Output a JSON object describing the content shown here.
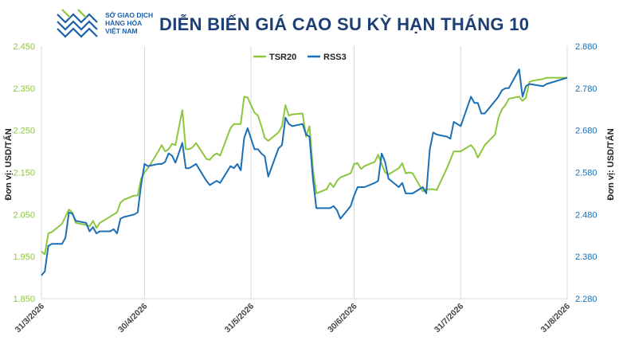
{
  "header": {
    "logo_text": "SỞ GIAO DỊCH\nHÀNG HÓA\nVIỆT NAM",
    "title": "DIỄN BIẾN GIÁ CAO SU KỲ HẠN THÁNG 10"
  },
  "chart_data": {
    "type": "line",
    "title": "DIỄN BIẾN GIÁ CAO SU KỲ HẠN THÁNG 10",
    "y_left_label": "Đơn vị: USD/TẤN",
    "y_right_label": "Đơn vị: USD/TẤN",
    "y_left_range": [
      1.85,
      2.45
    ],
    "y_right_range": [
      2.28,
      2.88
    ],
    "y_left_ticks": [
      "1.850",
      "1.950",
      "2.050",
      "2.150",
      "2.250",
      "2.350",
      "2.450"
    ],
    "y_right_ticks": [
      "2.280",
      "2.380",
      "2.480",
      "2.580",
      "2.680",
      "2.780",
      "2.880"
    ],
    "x_range": [
      "2026-03-31",
      "2026-08-31"
    ],
    "x_ticks": [
      {
        "date": "2026-03-31",
        "label": "31/3/2026"
      },
      {
        "date": "2026-04-30",
        "label": "30/4/2026"
      },
      {
        "date": "2026-05-31",
        "label": "31/5/2026"
      },
      {
        "date": "2026-06-30",
        "label": "30/6/2026"
      },
      {
        "date": "2026-07-31",
        "label": "31/7/2026"
      },
      {
        "date": "2026-08-31",
        "label": "31/8/2026"
      }
    ],
    "grid": "vertical",
    "legend_position": "top-center",
    "series": [
      {
        "name": "TSR20",
        "axis": "left",
        "color": "#8dc63f",
        "points": [
          [
            "2026-03-31",
            1.962
          ],
          [
            "2026-04-01",
            1.955
          ],
          [
            "2026-04-02",
            2.005
          ],
          [
            "2026-04-03",
            2.008
          ],
          [
            "2026-04-06",
            2.028
          ],
          [
            "2026-04-07",
            2.045
          ],
          [
            "2026-04-08",
            2.062
          ],
          [
            "2026-04-09",
            2.055
          ],
          [
            "2026-04-10",
            2.03
          ],
          [
            "2026-04-13",
            2.025
          ],
          [
            "2026-04-14",
            2.022
          ],
          [
            "2026-04-15",
            2.035
          ],
          [
            "2026-04-16",
            2.018
          ],
          [
            "2026-04-17",
            2.03
          ],
          [
            "2026-04-20",
            2.045
          ],
          [
            "2026-04-21",
            2.05
          ],
          [
            "2026-04-22",
            2.055
          ],
          [
            "2026-04-23",
            2.078
          ],
          [
            "2026-04-24",
            2.085
          ],
          [
            "2026-04-27",
            2.095
          ],
          [
            "2026-04-28",
            2.095
          ],
          [
            "2026-04-29",
            2.135
          ],
          [
            "2026-04-30",
            2.15
          ],
          [
            "2026-05-01",
            2.16
          ],
          [
            "2026-05-04",
            2.2
          ],
          [
            "2026-05-05",
            2.215
          ],
          [
            "2026-05-06",
            2.2
          ],
          [
            "2026-05-07",
            2.205
          ],
          [
            "2026-05-08",
            2.218
          ],
          [
            "2026-05-09",
            2.215
          ],
          [
            "2026-05-11",
            2.298
          ],
          [
            "2026-05-12",
            2.205
          ],
          [
            "2026-05-13",
            2.205
          ],
          [
            "2026-05-14",
            2.21
          ],
          [
            "2026-05-15",
            2.22
          ],
          [
            "2026-05-18",
            2.182
          ],
          [
            "2026-05-19",
            2.18
          ],
          [
            "2026-05-20",
            2.19
          ],
          [
            "2026-05-21",
            2.195
          ],
          [
            "2026-05-22",
            2.19
          ],
          [
            "2026-05-25",
            2.255
          ],
          [
            "2026-05-26",
            2.265
          ],
          [
            "2026-05-27",
            2.265
          ],
          [
            "2026-05-28",
            2.265
          ],
          [
            "2026-05-29",
            2.33
          ],
          [
            "2026-05-30",
            2.328
          ],
          [
            "2026-06-01",
            2.292
          ],
          [
            "2026-06-02",
            2.285
          ],
          [
            "2026-06-03",
            2.26
          ],
          [
            "2026-06-04",
            2.232
          ],
          [
            "2026-06-05",
            2.225
          ],
          [
            "2026-06-08",
            2.245
          ],
          [
            "2026-06-09",
            2.26
          ],
          [
            "2026-06-10",
            2.31
          ],
          [
            "2026-06-11",
            2.285
          ],
          [
            "2026-06-12",
            2.288
          ],
          [
            "2026-06-15",
            2.29
          ],
          [
            "2026-06-16",
            2.235
          ],
          [
            "2026-06-17",
            2.26
          ],
          [
            "2026-06-18",
            2.158
          ],
          [
            "2026-06-19",
            2.1
          ],
          [
            "2026-06-22",
            2.11
          ],
          [
            "2026-06-23",
            2.125
          ],
          [
            "2026-06-24",
            2.115
          ],
          [
            "2026-06-25",
            2.13
          ],
          [
            "2026-06-26",
            2.138
          ],
          [
            "2026-06-29",
            2.148
          ],
          [
            "2026-06-30",
            2.17
          ],
          [
            "2026-07-01",
            2.172
          ],
          [
            "2026-07-02",
            2.158
          ],
          [
            "2026-07-03",
            2.165
          ],
          [
            "2026-07-06",
            2.175
          ],
          [
            "2026-07-07",
            2.192
          ],
          [
            "2026-07-08",
            2.17
          ],
          [
            "2026-07-09",
            2.15
          ],
          [
            "2026-07-10",
            2.145
          ],
          [
            "2026-07-13",
            2.16
          ],
          [
            "2026-07-14",
            2.172
          ],
          [
            "2026-07-15",
            2.148
          ],
          [
            "2026-07-16",
            2.15
          ],
          [
            "2026-07-17",
            2.148
          ],
          [
            "2026-07-20",
            2.105
          ],
          [
            "2026-07-21",
            2.11
          ],
          [
            "2026-07-22",
            2.11
          ],
          [
            "2026-07-23",
            2.11
          ],
          [
            "2026-07-24",
            2.108
          ],
          [
            "2026-07-27",
            2.16
          ],
          [
            "2026-07-28",
            2.18
          ],
          [
            "2026-07-29",
            2.2
          ],
          [
            "2026-07-30",
            2.2
          ],
          [
            "2026-07-31",
            2.2
          ],
          [
            "2026-08-03",
            2.215
          ],
          [
            "2026-08-04",
            2.205
          ],
          [
            "2026-08-05",
            2.185
          ],
          [
            "2026-08-06",
            2.2
          ],
          [
            "2026-08-07",
            2.215
          ],
          [
            "2026-08-10",
            2.24
          ],
          [
            "2026-08-11",
            2.28
          ],
          [
            "2026-08-12",
            2.3
          ],
          [
            "2026-08-13",
            2.31
          ],
          [
            "2026-08-14",
            2.325
          ],
          [
            "2026-08-17",
            2.33
          ],
          [
            "2026-08-18",
            2.32
          ],
          [
            "2026-08-19",
            2.328
          ],
          [
            "2026-08-20",
            2.365
          ],
          [
            "2026-08-21",
            2.368
          ],
          [
            "2026-08-24",
            2.372
          ],
          [
            "2026-08-25",
            2.375
          ],
          [
            "2026-08-31",
            2.375
          ]
        ]
      },
      {
        "name": "RSS3",
        "axis": "right",
        "color": "#1a6fb5",
        "points": [
          [
            "2026-03-31",
            2.335
          ],
          [
            "2026-04-01",
            2.345
          ],
          [
            "2026-04-02",
            2.405
          ],
          [
            "2026-04-03",
            2.41
          ],
          [
            "2026-04-06",
            2.41
          ],
          [
            "2026-04-07",
            2.425
          ],
          [
            "2026-04-08",
            2.485
          ],
          [
            "2026-04-09",
            2.482
          ],
          [
            "2026-04-10",
            2.465
          ],
          [
            "2026-04-13",
            2.46
          ],
          [
            "2026-04-14",
            2.44
          ],
          [
            "2026-04-15",
            2.45
          ],
          [
            "2026-04-16",
            2.435
          ],
          [
            "2026-04-17",
            2.44
          ],
          [
            "2026-04-20",
            2.44
          ],
          [
            "2026-04-21",
            2.445
          ],
          [
            "2026-04-22",
            2.435
          ],
          [
            "2026-04-23",
            2.47
          ],
          [
            "2026-04-24",
            2.474
          ],
          [
            "2026-04-27",
            2.48
          ],
          [
            "2026-04-28",
            2.485
          ],
          [
            "2026-04-29",
            2.55
          ],
          [
            "2026-04-30",
            2.6
          ],
          [
            "2026-05-01",
            2.595
          ],
          [
            "2026-05-04",
            2.6
          ],
          [
            "2026-05-05",
            2.6
          ],
          [
            "2026-05-06",
            2.605
          ],
          [
            "2026-05-07",
            2.625
          ],
          [
            "2026-05-08",
            2.62
          ],
          [
            "2026-05-09",
            2.603
          ],
          [
            "2026-05-11",
            2.65
          ],
          [
            "2026-05-12",
            2.59
          ],
          [
            "2026-05-13",
            2.59
          ],
          [
            "2026-05-14",
            2.595
          ],
          [
            "2026-05-15",
            2.6
          ],
          [
            "2026-05-18",
            2.56
          ],
          [
            "2026-05-19",
            2.55
          ],
          [
            "2026-05-20",
            2.555
          ],
          [
            "2026-05-21",
            2.56
          ],
          [
            "2026-05-22",
            2.555
          ],
          [
            "2026-05-25",
            2.595
          ],
          [
            "2026-05-26",
            2.59
          ],
          [
            "2026-05-27",
            2.6
          ],
          [
            "2026-05-28",
            2.585
          ],
          [
            "2026-05-29",
            2.662
          ],
          [
            "2026-05-30",
            2.685
          ],
          [
            "2026-06-01",
            2.635
          ],
          [
            "2026-06-02",
            2.635
          ],
          [
            "2026-06-03",
            2.625
          ],
          [
            "2026-06-04",
            2.618
          ],
          [
            "2026-06-05",
            2.57
          ],
          [
            "2026-06-08",
            2.637
          ],
          [
            "2026-06-09",
            2.645
          ],
          [
            "2026-06-10",
            2.71
          ],
          [
            "2026-06-11",
            2.695
          ],
          [
            "2026-06-12",
            2.69
          ],
          [
            "2026-06-15",
            2.695
          ],
          [
            "2026-06-16",
            2.67
          ],
          [
            "2026-06-17",
            2.665
          ],
          [
            "2026-06-18",
            2.565
          ],
          [
            "2026-06-19",
            2.495
          ],
          [
            "2026-06-22",
            2.495
          ],
          [
            "2026-06-23",
            2.495
          ],
          [
            "2026-06-24",
            2.5
          ],
          [
            "2026-06-25",
            2.49
          ],
          [
            "2026-06-26",
            2.47
          ],
          [
            "2026-06-29",
            2.5
          ],
          [
            "2026-06-30",
            2.525
          ],
          [
            "2026-07-01",
            2.545
          ],
          [
            "2026-07-02",
            2.545
          ],
          [
            "2026-07-03",
            2.545
          ],
          [
            "2026-07-06",
            2.555
          ],
          [
            "2026-07-07",
            2.56
          ],
          [
            "2026-07-08",
            2.625
          ],
          [
            "2026-07-09",
            2.605
          ],
          [
            "2026-07-10",
            2.565
          ],
          [
            "2026-07-13",
            2.545
          ],
          [
            "2026-07-14",
            2.555
          ],
          [
            "2026-07-15",
            2.53
          ],
          [
            "2026-07-16",
            2.53
          ],
          [
            "2026-07-17",
            2.53
          ],
          [
            "2026-07-20",
            2.545
          ],
          [
            "2026-07-21",
            2.53
          ],
          [
            "2026-07-22",
            2.635
          ],
          [
            "2026-07-23",
            2.675
          ],
          [
            "2026-07-24",
            2.67
          ],
          [
            "2026-07-27",
            2.665
          ],
          [
            "2026-07-28",
            2.66
          ],
          [
            "2026-07-29",
            2.7
          ],
          [
            "2026-07-30",
            2.695
          ],
          [
            "2026-07-31",
            2.69
          ],
          [
            "2026-08-03",
            2.76
          ],
          [
            "2026-08-04",
            2.745
          ],
          [
            "2026-08-05",
            2.745
          ],
          [
            "2026-08-06",
            2.72
          ],
          [
            "2026-08-07",
            2.72
          ],
          [
            "2026-08-10",
            2.75
          ],
          [
            "2026-08-11",
            2.76
          ],
          [
            "2026-08-12",
            2.775
          ],
          [
            "2026-08-13",
            2.78
          ],
          [
            "2026-08-14",
            2.78
          ],
          [
            "2026-08-17",
            2.825
          ],
          [
            "2026-08-18",
            2.76
          ],
          [
            "2026-08-19",
            2.785
          ],
          [
            "2026-08-20",
            2.79
          ],
          [
            "2026-08-24",
            2.785
          ],
          [
            "2026-08-25",
            2.79
          ],
          [
            "2026-08-31",
            2.805
          ]
        ]
      }
    ]
  }
}
